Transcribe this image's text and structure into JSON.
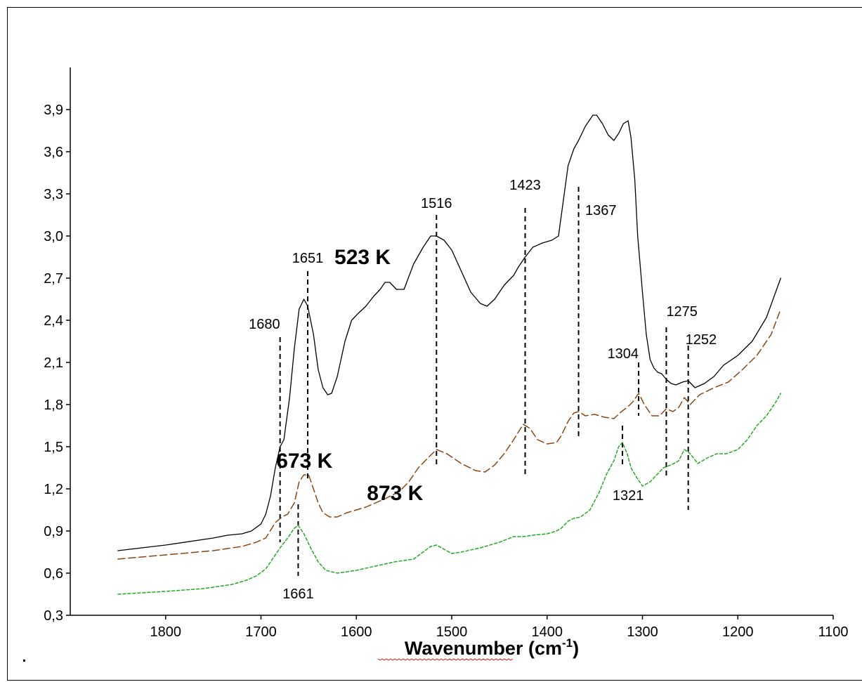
{
  "chart_data": {
    "type": "line",
    "xlabel": "Wavenumber (cm",
    "xlabel_sup": "-1",
    "xlabel_close": ")",
    "ylabel": "",
    "xlim": [
      1100,
      1900
    ],
    "x_reversed": true,
    "ylim": [
      0.3,
      4.2
    ],
    "x_ticks": [
      1800,
      1700,
      1600,
      1500,
      1400,
      1300,
      1200,
      1100
    ],
    "y_ticks": [
      0.3,
      0.6,
      0.9,
      1.2,
      1.5,
      1.8,
      2.1,
      2.4,
      2.7,
      3.0,
      3.3,
      3.6,
      3.9
    ],
    "y_tick_labels": [
      "0,3",
      "0,6",
      "0,9",
      "1,2",
      "1,5",
      "1,8",
      "2,1",
      "2,4",
      "2,7",
      "3,0",
      "3,3",
      "3,6",
      "3,9"
    ],
    "grid": false,
    "series": [
      {
        "name": "523 K",
        "color": "#000000",
        "style": "solid",
        "label_at": [
          1564,
          2.8
        ],
        "x": [
          1850,
          1800,
          1750,
          1735,
          1720,
          1710,
          1700,
          1695,
          1690,
          1685,
          1680,
          1676,
          1670,
          1665,
          1660,
          1655,
          1651,
          1645,
          1640,
          1635,
          1630,
          1626,
          1620,
          1612,
          1605,
          1598,
          1590,
          1582,
          1575,
          1570,
          1565,
          1558,
          1550,
          1540,
          1530,
          1522,
          1516,
          1508,
          1500,
          1490,
          1480,
          1470,
          1463,
          1455,
          1445,
          1435,
          1430,
          1423,
          1415,
          1405,
          1395,
          1388,
          1383,
          1378,
          1372,
          1367,
          1360,
          1352,
          1348,
          1342,
          1336,
          1330,
          1325,
          1320,
          1315,
          1312,
          1308,
          1305,
          1300,
          1296,
          1292,
          1288,
          1284,
          1280,
          1275,
          1270,
          1265,
          1258,
          1252,
          1245,
          1235,
          1225,
          1215,
          1200,
          1185,
          1170,
          1155
        ],
        "y": [
          0.76,
          0.8,
          0.85,
          0.87,
          0.88,
          0.9,
          0.95,
          1.02,
          1.15,
          1.35,
          1.5,
          1.55,
          1.85,
          2.2,
          2.48,
          2.55,
          2.5,
          2.3,
          2.05,
          1.92,
          1.87,
          1.88,
          2.0,
          2.25,
          2.4,
          2.45,
          2.5,
          2.57,
          2.62,
          2.67,
          2.67,
          2.62,
          2.62,
          2.8,
          2.92,
          3.0,
          3.0,
          2.97,
          2.9,
          2.75,
          2.6,
          2.52,
          2.5,
          2.55,
          2.65,
          2.72,
          2.78,
          2.85,
          2.92,
          2.95,
          2.97,
          3.0,
          3.25,
          3.5,
          3.62,
          3.68,
          3.78,
          3.86,
          3.86,
          3.8,
          3.72,
          3.68,
          3.73,
          3.8,
          3.82,
          3.7,
          3.4,
          3.0,
          2.6,
          2.3,
          2.12,
          2.06,
          2.03,
          2.02,
          1.98,
          1.95,
          1.94,
          1.96,
          1.97,
          1.92,
          1.95,
          2.0,
          2.08,
          2.15,
          2.25,
          2.42,
          2.7
        ]
      },
      {
        "name": "673 K",
        "color": "#8B4513",
        "style": "dashed",
        "label_at": [
          1625,
          1.35
        ],
        "x": [
          1850,
          1800,
          1750,
          1720,
          1705,
          1695,
          1685,
          1678,
          1672,
          1665,
          1660,
          1655,
          1650,
          1645,
          1640,
          1635,
          1628,
          1620,
          1610,
          1600,
          1590,
          1580,
          1570,
          1555,
          1545,
          1535,
          1525,
          1516,
          1505,
          1490,
          1475,
          1465,
          1455,
          1445,
          1435,
          1425,
          1418,
          1410,
          1400,
          1390,
          1385,
          1378,
          1372,
          1367,
          1360,
          1350,
          1340,
          1330,
          1322,
          1316,
          1310,
          1304,
          1298,
          1290,
          1282,
          1275,
          1268,
          1262,
          1256,
          1250,
          1240,
          1225,
          1210,
          1195,
          1180,
          1165,
          1155
        ],
        "y": [
          0.7,
          0.73,
          0.76,
          0.79,
          0.82,
          0.85,
          0.96,
          1.0,
          1.02,
          1.1,
          1.25,
          1.3,
          1.3,
          1.2,
          1.1,
          1.03,
          1.0,
          1.0,
          1.03,
          1.05,
          1.07,
          1.1,
          1.13,
          1.18,
          1.25,
          1.35,
          1.42,
          1.48,
          1.45,
          1.38,
          1.33,
          1.32,
          1.37,
          1.45,
          1.55,
          1.66,
          1.63,
          1.55,
          1.52,
          1.53,
          1.58,
          1.68,
          1.74,
          1.75,
          1.72,
          1.73,
          1.71,
          1.7,
          1.75,
          1.78,
          1.82,
          1.88,
          1.8,
          1.72,
          1.72,
          1.77,
          1.75,
          1.78,
          1.85,
          1.8,
          1.87,
          1.92,
          1.96,
          2.05,
          2.15,
          2.3,
          2.48
        ]
      },
      {
        "name": "873 K",
        "color": "#22AA22",
        "style": "dotted",
        "label_at": [
          1530,
          1.12
        ],
        "x": [
          1850,
          1800,
          1760,
          1730,
          1715,
          1705,
          1695,
          1688,
          1680,
          1672,
          1665,
          1661,
          1655,
          1648,
          1640,
          1632,
          1620,
          1600,
          1580,
          1560,
          1540,
          1530,
          1522,
          1516,
          1508,
          1500,
          1490,
          1470,
          1450,
          1435,
          1425,
          1415,
          1400,
          1390,
          1385,
          1378,
          1372,
          1365,
          1355,
          1345,
          1338,
          1330,
          1325,
          1321,
          1316,
          1312,
          1306,
          1300,
          1292,
          1285,
          1278,
          1270,
          1262,
          1256,
          1250,
          1242,
          1232,
          1222,
          1212,
          1200,
          1190,
          1180,
          1170,
          1160,
          1155
        ],
        "y": [
          0.45,
          0.47,
          0.49,
          0.52,
          0.55,
          0.58,
          0.63,
          0.7,
          0.78,
          0.85,
          0.92,
          0.94,
          0.88,
          0.78,
          0.68,
          0.62,
          0.6,
          0.62,
          0.65,
          0.68,
          0.7,
          0.75,
          0.79,
          0.8,
          0.77,
          0.74,
          0.75,
          0.78,
          0.82,
          0.86,
          0.86,
          0.87,
          0.88,
          0.9,
          0.92,
          0.97,
          0.99,
          1.0,
          1.05,
          1.18,
          1.3,
          1.4,
          1.5,
          1.53,
          1.45,
          1.35,
          1.28,
          1.22,
          1.25,
          1.3,
          1.35,
          1.37,
          1.4,
          1.48,
          1.45,
          1.38,
          1.42,
          1.45,
          1.45,
          1.48,
          1.55,
          1.65,
          1.72,
          1.82,
          1.88
        ]
      }
    ],
    "peak_markers": [
      {
        "label": "1680",
        "x": 1680,
        "y_top": 2.28,
        "y_bottom": 0.82,
        "label_x": 1680,
        "label_y": 2.34,
        "label_anchor": "end"
      },
      {
        "label": "1651",
        "x": 1651,
        "y_top": 2.75,
        "y_bottom": 1.27,
        "label_x": 1651,
        "label_y": 2.81,
        "label_anchor": "middle"
      },
      {
        "label": "1661",
        "x": 1661,
        "y_top": 1.09,
        "y_bottom": 0.58,
        "label_x": 1661,
        "label_y": 0.42,
        "label_anchor": "middle"
      },
      {
        "label": "1516",
        "x": 1516,
        "y_top": 3.15,
        "y_bottom": 1.35,
        "label_x": 1516,
        "label_y": 3.2,
        "label_anchor": "middle"
      },
      {
        "label": "1423",
        "x": 1423,
        "y_top": 3.2,
        "y_bottom": 1.28,
        "label_x": 1423,
        "label_y": 3.33,
        "label_anchor": "middle"
      },
      {
        "label": "1367",
        "x": 1367,
        "y_top": 3.35,
        "y_bottom": 1.55,
        "label_x": 1360,
        "label_y": 3.15,
        "label_anchor": "start"
      },
      {
        "label": "1304",
        "x": 1304,
        "y_top": 2.1,
        "y_bottom": 1.72,
        "label_x": 1304,
        "label_y": 2.13,
        "label_anchor": "end"
      },
      {
        "label": "1321",
        "x": 1321,
        "y_top": 1.65,
        "y_bottom": 1.35,
        "label_x": 1315,
        "label_y": 1.12,
        "label_anchor": "middle"
      },
      {
        "label": "1275",
        "x": 1275,
        "y_top": 2.35,
        "y_bottom": 1.28,
        "label_x": 1275,
        "label_y": 2.43,
        "label_anchor": "start"
      },
      {
        "label": "1252",
        "x": 1252,
        "y_top": 2.22,
        "y_bottom": 1.05,
        "label_x": 1255,
        "label_y": 2.23,
        "label_anchor": "start"
      }
    ]
  }
}
